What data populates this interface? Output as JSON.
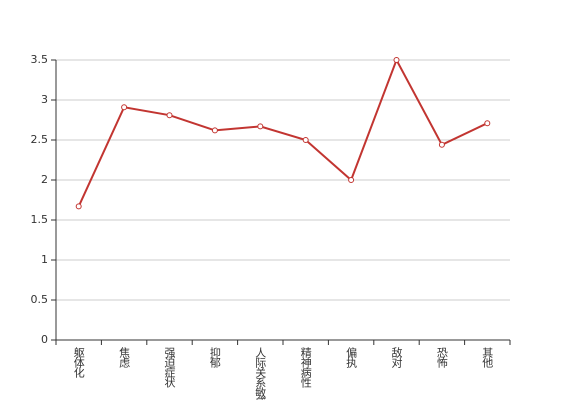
{
  "chart_data": {
    "type": "line",
    "categories": [
      "躯体化",
      "焦虑",
      "强迫症状",
      "抑郁",
      "人际关系敏感",
      "精神病性",
      "偏执",
      "敌对",
      "恐怖",
      "其他"
    ],
    "series": [
      {
        "color": "#c23531",
        "values": [
          1.67,
          2.91,
          2.81,
          2.62,
          2.67,
          2.5,
          2.0,
          3.5,
          2.44,
          2.71
        ]
      }
    ],
    "ylim": [
      0,
      3.5
    ],
    "yticks": [
      0,
      0.5,
      1,
      1.5,
      2,
      2.5,
      3,
      3.5
    ],
    "grid": true
  }
}
